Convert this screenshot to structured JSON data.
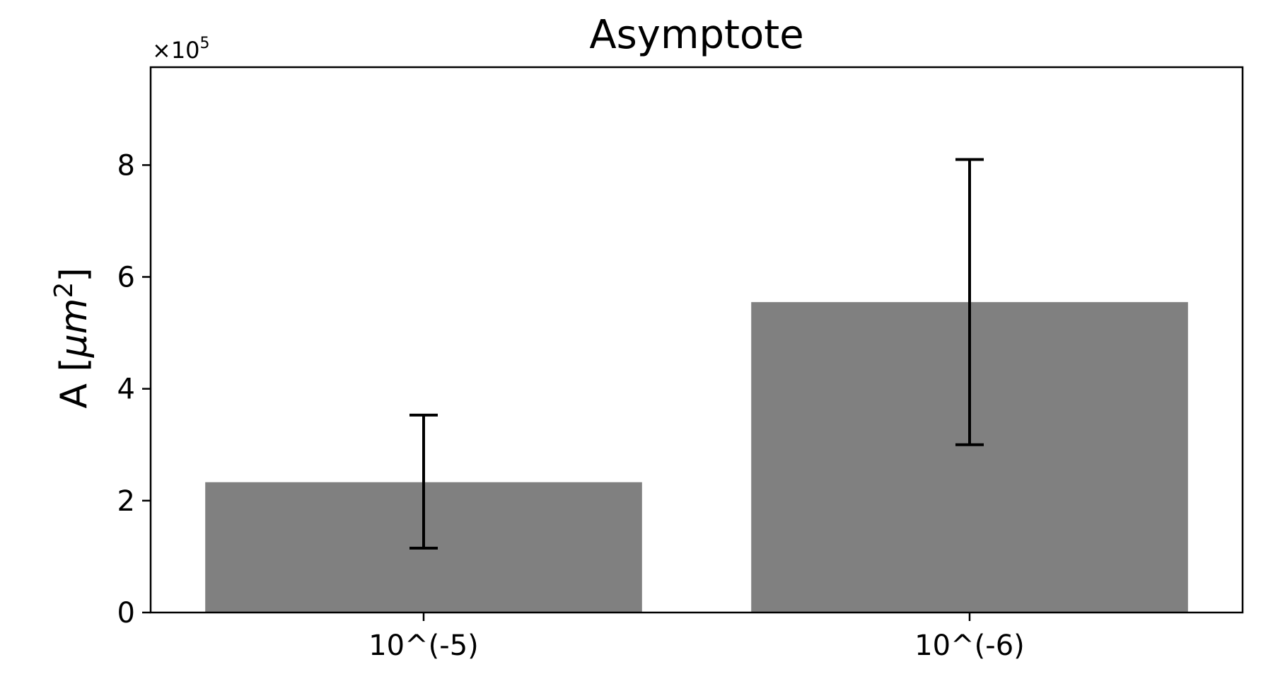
{
  "chart_data": {
    "type": "bar",
    "title": "Asymptote",
    "ylabel_main": "A [",
    "ylabel_var": "μm",
    "ylabel_sup": "2",
    "ylabel_close": "]",
    "xlabel": "",
    "offset_base": "×10",
    "offset_exp": "5",
    "categories": [
      "10^(-5)",
      "10^(-6)"
    ],
    "values": [
      2.33,
      5.55
    ],
    "error_low": [
      1.15,
      3.0
    ],
    "error_high": [
      3.53,
      8.1
    ],
    "ylim": [
      0,
      9.75
    ],
    "yticks": [
      0,
      2,
      4,
      6,
      8
    ],
    "grid": false,
    "colors": {
      "bar": "#808080",
      "error": "#000000",
      "axis": "#000000"
    }
  }
}
